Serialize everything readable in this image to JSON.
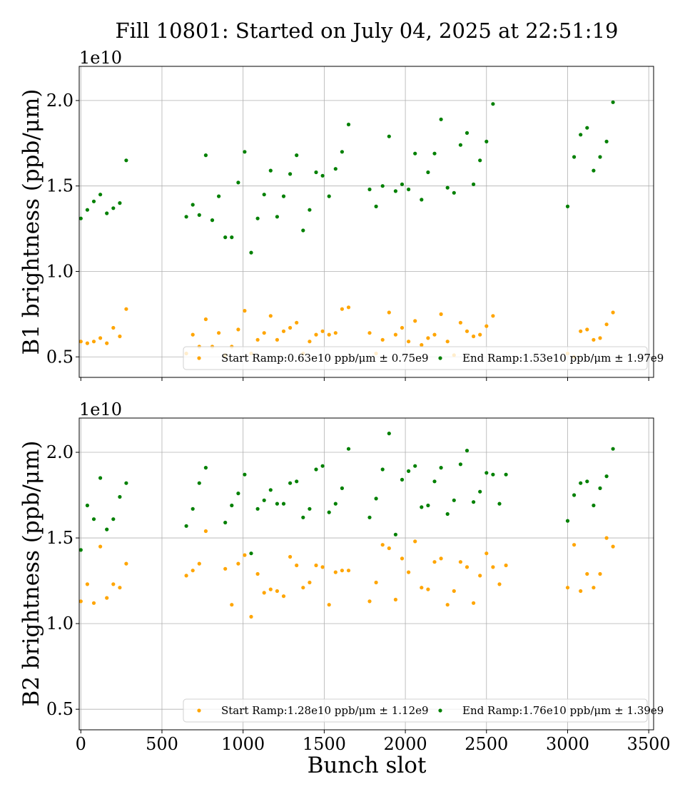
{
  "figure": {
    "title": "Fill 10801: Started on July 04, 2025 at 22:51:19"
  },
  "colors": {
    "start": "#ffa500",
    "end": "#008000",
    "grid": "#b0b0b0"
  },
  "chart_data": [
    {
      "type": "scatter",
      "panel": "top",
      "ylabel": "B1 brightness (ppb/μm)",
      "offset_text": "1e10",
      "xlabel": "",
      "xlim": [
        -10,
        3530
      ],
      "ylim": [
        0.38,
        2.2
      ],
      "y_scale_note": "values in units of 1e10",
      "x_ticks": [
        0,
        500,
        1000,
        1500,
        2000,
        2500,
        3000,
        3500
      ],
      "x_tick_labels_visible": false,
      "y_ticks": [
        0.5,
        1.0,
        1.5,
        2.0
      ],
      "y_tick_labels": [
        "0.5",
        "1.0",
        "1.5",
        "2.0"
      ],
      "grid": true,
      "legend_position": "lower-right",
      "series": [
        {
          "name": "Start Ramp",
          "legend_label": "Start Ramp:0.63e10 ppb/μm ± 0.75e9",
          "color": "#ffa500",
          "x": [
            0,
            40,
            80,
            120,
            160,
            200,
            240,
            280,
            650,
            690,
            730,
            770,
            810,
            850,
            890,
            930,
            970,
            1010,
            1050,
            1090,
            1130,
            1170,
            1210,
            1250,
            1290,
            1330,
            1370,
            1410,
            1450,
            1490,
            1530,
            1570,
            1610,
            1650,
            1780,
            1820,
            1860,
            1900,
            1940,
            1980,
            2020,
            2060,
            2100,
            2140,
            2180,
            2220,
            2260,
            2300,
            2340,
            2380,
            2420,
            2460,
            2500,
            2540,
            3000,
            3040,
            3080,
            3120,
            3160,
            3200,
            3240,
            3280
          ],
          "y": [
            0.59,
            0.58,
            0.59,
            0.61,
            0.58,
            0.67,
            0.62,
            0.78,
            0.52,
            0.63,
            0.56,
            0.72,
            0.56,
            0.64,
            0.51,
            0.56,
            0.66,
            0.77,
            0.52,
            0.6,
            0.64,
            0.74,
            0.6,
            0.65,
            0.67,
            0.7,
            0.52,
            0.59,
            0.63,
            0.65,
            0.63,
            0.64,
            0.78,
            0.79,
            0.64,
            0.52,
            0.6,
            0.76,
            0.63,
            0.67,
            0.59,
            0.71,
            0.57,
            0.61,
            0.63,
            0.75,
            0.59,
            0.51,
            0.7,
            0.65,
            0.62,
            0.63,
            0.68,
            0.74,
            0.52,
            0.5,
            0.65,
            0.66,
            0.6,
            0.61,
            0.69,
            0.76
          ]
        },
        {
          "name": "End Ramp",
          "legend_label": "End Ramp:1.53e10 ppb/μm ± 1.97e9",
          "color": "#008000",
          "x": [
            0,
            40,
            80,
            120,
            160,
            200,
            240,
            280,
            650,
            690,
            730,
            770,
            810,
            850,
            890,
            930,
            970,
            1010,
            1050,
            1090,
            1130,
            1170,
            1210,
            1250,
            1290,
            1330,
            1370,
            1410,
            1450,
            1490,
            1530,
            1570,
            1610,
            1650,
            1780,
            1820,
            1860,
            1900,
            1940,
            1980,
            2020,
            2060,
            2100,
            2140,
            2180,
            2220,
            2260,
            2300,
            2340,
            2380,
            2420,
            2460,
            2500,
            2540,
            3000,
            3040,
            3080,
            3120,
            3160,
            3200,
            3240,
            3280
          ],
          "y": [
            1.31,
            1.36,
            1.41,
            1.45,
            1.34,
            1.37,
            1.4,
            1.65,
            1.32,
            1.39,
            1.33,
            1.68,
            1.3,
            1.44,
            1.2,
            1.2,
            1.52,
            1.7,
            1.11,
            1.31,
            1.45,
            1.59,
            1.32,
            1.44,
            1.57,
            1.68,
            1.24,
            1.36,
            1.58,
            1.56,
            1.44,
            1.6,
            1.7,
            1.86,
            1.48,
            1.38,
            1.5,
            1.79,
            1.47,
            1.51,
            1.48,
            1.69,
            1.42,
            1.58,
            1.69,
            1.89,
            1.49,
            1.46,
            1.74,
            1.81,
            1.51,
            1.65,
            1.76,
            1.98,
            1.38,
            1.67,
            1.8,
            1.84,
            1.59,
            1.67,
            1.76,
            1.99
          ]
        }
      ]
    },
    {
      "type": "scatter",
      "panel": "bottom",
      "ylabel": "B2 brightness (ppb/μm)",
      "offset_text": "1e10",
      "xlabel": "Bunch slot",
      "xlim": [
        -10,
        3530
      ],
      "ylim": [
        0.38,
        2.2
      ],
      "y_scale_note": "values in units of 1e10",
      "x_ticks": [
        0,
        500,
        1000,
        1500,
        2000,
        2500,
        3000,
        3500
      ],
      "x_tick_labels": [
        "0",
        "500",
        "1000",
        "1500",
        "2000",
        "2500",
        "3000",
        "3500"
      ],
      "y_ticks": [
        0.5,
        1.0,
        1.5,
        2.0
      ],
      "y_tick_labels": [
        "0.5",
        "1.0",
        "1.5",
        "2.0"
      ],
      "grid": true,
      "legend_position": "lower-right",
      "series": [
        {
          "name": "Start Ramp",
          "legend_label": "Start Ramp:1.28e10 ppb/μm ± 1.12e9",
          "color": "#ffa500",
          "x": [
            0,
            40,
            80,
            120,
            160,
            200,
            240,
            280,
            650,
            690,
            730,
            770,
            890,
            930,
            970,
            1010,
            1050,
            1090,
            1130,
            1170,
            1210,
            1250,
            1290,
            1330,
            1370,
            1410,
            1450,
            1490,
            1530,
            1570,
            1610,
            1650,
            1780,
            1820,
            1860,
            1900,
            1940,
            1980,
            2020,
            2060,
            2100,
            2140,
            2180,
            2220,
            2260,
            2300,
            2340,
            2380,
            2420,
            2460,
            2500,
            2540,
            2580,
            2620,
            3000,
            3040,
            3080,
            3120,
            3160,
            3200,
            3240,
            3280
          ],
          "y": [
            1.13,
            1.23,
            1.12,
            1.45,
            1.15,
            1.23,
            1.21,
            1.35,
            1.28,
            1.31,
            1.35,
            1.54,
            1.32,
            1.11,
            1.35,
            1.4,
            1.04,
            1.29,
            1.18,
            1.2,
            1.19,
            1.16,
            1.39,
            1.34,
            1.21,
            1.24,
            1.34,
            1.33,
            1.11,
            1.3,
            1.31,
            1.31,
            1.13,
            1.24,
            1.46,
            1.44,
            1.14,
            1.38,
            1.3,
            1.48,
            1.21,
            1.2,
            1.36,
            1.38,
            1.11,
            1.19,
            1.36,
            1.33,
            1.12,
            1.28,
            1.41,
            1.33,
            1.23,
            1.34,
            1.21,
            1.46,
            1.19,
            1.29,
            1.21,
            1.29,
            1.5,
            1.45
          ]
        },
        {
          "name": "End Ramp",
          "legend_label": "End Ramp:1.76e10 ppb/μm ± 1.39e9",
          "color": "#008000",
          "x": [
            0,
            40,
            80,
            120,
            160,
            200,
            240,
            280,
            650,
            690,
            730,
            770,
            890,
            930,
            970,
            1010,
            1050,
            1090,
            1130,
            1170,
            1210,
            1250,
            1290,
            1330,
            1370,
            1410,
            1450,
            1490,
            1530,
            1570,
            1610,
            1650,
            1780,
            1820,
            1860,
            1900,
            1940,
            1980,
            2020,
            2060,
            2100,
            2140,
            2180,
            2220,
            2260,
            2300,
            2340,
            2380,
            2420,
            2460,
            2500,
            2540,
            2580,
            2620,
            3000,
            3040,
            3080,
            3120,
            3160,
            3200,
            3240,
            3280
          ],
          "y": [
            1.43,
            1.69,
            1.61,
            1.85,
            1.55,
            1.61,
            1.74,
            1.82,
            1.57,
            1.67,
            1.82,
            1.91,
            1.59,
            1.69,
            1.76,
            1.87,
            1.41,
            1.67,
            1.72,
            1.78,
            1.7,
            1.7,
            1.82,
            1.83,
            1.62,
            1.67,
            1.9,
            1.92,
            1.65,
            1.7,
            1.79,
            2.02,
            1.62,
            1.73,
            1.9,
            2.11,
            1.52,
            1.84,
            1.89,
            1.92,
            1.68,
            1.69,
            1.83,
            1.91,
            1.64,
            1.72,
            1.93,
            2.01,
            1.71,
            1.77,
            1.88,
            1.87,
            1.7,
            1.87,
            1.6,
            1.75,
            1.82,
            1.83,
            1.69,
            1.79,
            1.86,
            2.02
          ]
        }
      ]
    }
  ]
}
